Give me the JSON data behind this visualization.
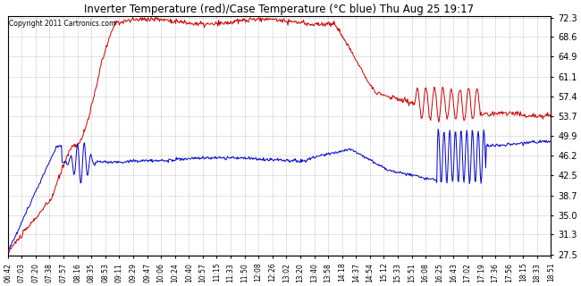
{
  "title": "Inverter Temperature (red)/Case Temperature (°C blue) Thu Aug 25 19:17",
  "copyright": "Copyright 2011 Cartronics.com",
  "yticks": [
    27.5,
    31.3,
    35.0,
    38.7,
    42.5,
    46.2,
    49.9,
    53.7,
    57.4,
    61.1,
    64.9,
    68.6,
    72.3
  ],
  "ymin": 27.5,
  "ymax": 72.3,
  "background_color": "#ffffff",
  "grid_color": "#999999",
  "red_color": "#cc0000",
  "blue_color": "#0000cc",
  "x_labels": [
    "06:42",
    "07:03",
    "07:20",
    "07:38",
    "07:57",
    "08:16",
    "08:35",
    "08:53",
    "09:11",
    "09:29",
    "09:47",
    "10:06",
    "10:24",
    "10:40",
    "10:57",
    "11:15",
    "11:33",
    "11:50",
    "12:08",
    "12:26",
    "13:02",
    "13:20",
    "13:40",
    "13:58",
    "14:18",
    "14:37",
    "14:54",
    "15:12",
    "15:33",
    "15:51",
    "16:08",
    "16:25",
    "16:43",
    "17:02",
    "17:19",
    "17:36",
    "17:56",
    "18:15",
    "18:33",
    "18:51"
  ]
}
